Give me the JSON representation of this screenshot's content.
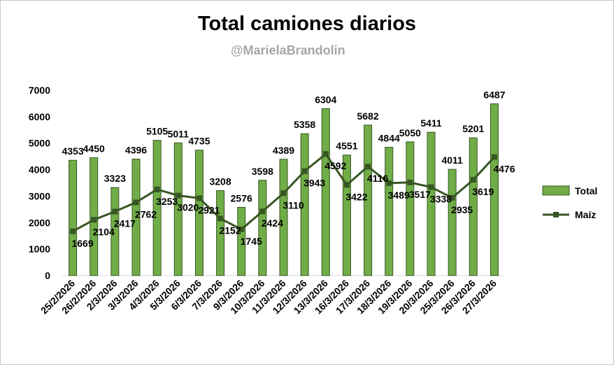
{
  "chart_data": {
    "type": "bar",
    "title": "Total camiones diarios",
    "subtitle": "@MarielaBrandolin",
    "categories": [
      "25/2/2026",
      "26/2/2026",
      "2/3/2026",
      "3/3/2026",
      "4/3/2026",
      "5/3/2026",
      "6/3/2026",
      "7/3/2026",
      "9/3/2026",
      "10/3/2026",
      "11/3/2026",
      "12/3/2026",
      "13/3/2026",
      "16/3/2026",
      "17/3/2026",
      "18/3/2026",
      "19/3/2026",
      "20/3/2026",
      "25/3/2026",
      "26/3/2026",
      "27/3/2026"
    ],
    "series": [
      {
        "name": "Total",
        "type": "bar",
        "color": "#70ad47",
        "values": [
          4353,
          4450,
          3323,
          4396,
          5105,
          5011,
          4735,
          3208,
          2576,
          3598,
          4389,
          5358,
          6304,
          4551,
          5682,
          4844,
          5050,
          5411,
          4011,
          5201,
          6487
        ]
      },
      {
        "name": "Maíz",
        "type": "line",
        "color": "#375623",
        "values": [
          1669,
          2104,
          2417,
          2762,
          3253,
          3020,
          2921,
          2152,
          1745,
          2424,
          3110,
          3943,
          4592,
          3422,
          4116,
          3489,
          3517,
          3338,
          2935,
          3619,
          4476
        ]
      }
    ],
    "yticks": [
      0,
      1000,
      2000,
      3000,
      4000,
      5000,
      6000,
      7000
    ],
    "ylim": [
      0,
      7000
    ],
    "grid": false,
    "legend": "right",
    "xlabel": "",
    "ylabel": ""
  }
}
